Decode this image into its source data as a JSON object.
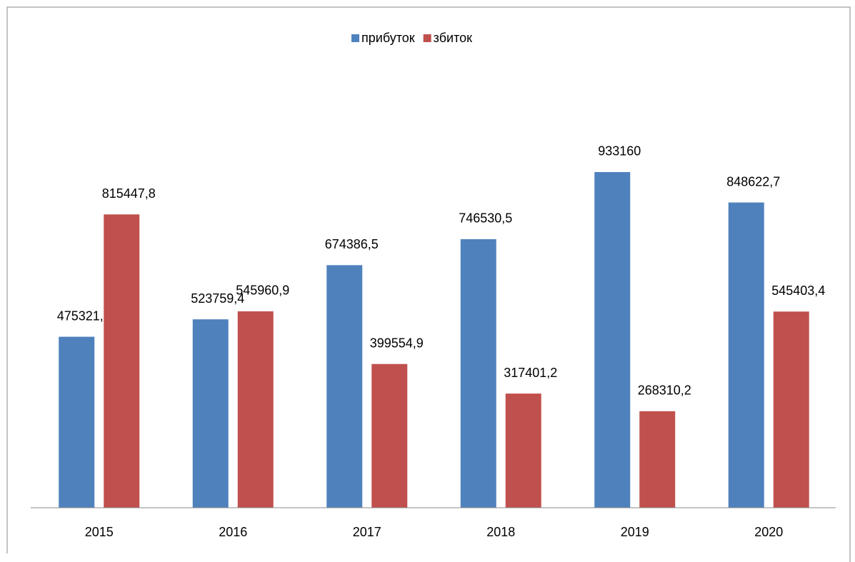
{
  "chart_data": {
    "type": "bar",
    "categories": [
      "2015",
      "2016",
      "2017",
      "2018",
      "2019",
      "2020"
    ],
    "series": [
      {
        "name": "прибуток",
        "color": "#4f81bd",
        "values": [
          475321.2,
          523759.4,
          674386.5,
          746530.5,
          933160,
          848622.7
        ],
        "value_labels": [
          "475321,2",
          "523759,4",
          "674386,5",
          "746530,5",
          "933160",
          "848622,7"
        ]
      },
      {
        "name": "збиток",
        "color": "#c0504d",
        "values": [
          815447.8,
          545960.9,
          399554.9,
          317401.2,
          268310.2,
          545403.4
        ],
        "value_labels": [
          "815447,8",
          "545960,9",
          "399554,9",
          "317401,2",
          "268310,2",
          "545403,4"
        ]
      }
    ],
    "ylim": [
      0,
      1000000
    ],
    "legend": "top"
  }
}
